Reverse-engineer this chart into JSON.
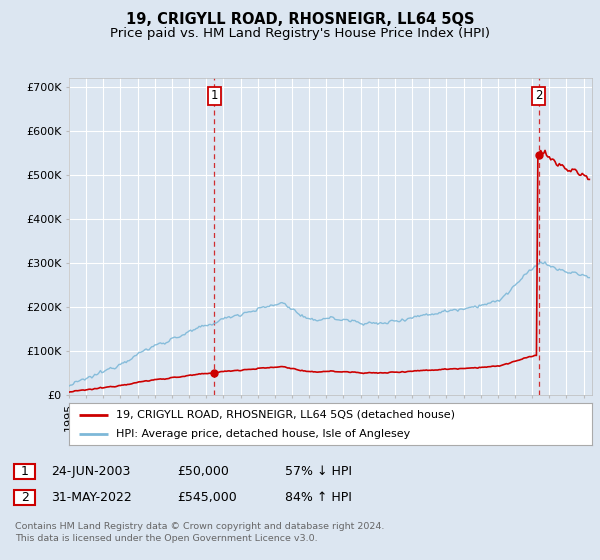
{
  "title": "19, CRIGYLL ROAD, RHOSNEIGR, LL64 5QS",
  "subtitle": "Price paid vs. HM Land Registry's House Price Index (HPI)",
  "background_color": "#dce6f1",
  "plot_bg_color": "#dce6f1",
  "grid_color": "#ffffff",
  "hpi_color": "#7db8d8",
  "price_color": "#cc0000",
  "ylim": [
    0,
    720000
  ],
  "yticks": [
    0,
    100000,
    200000,
    300000,
    400000,
    500000,
    600000,
    700000
  ],
  "ytick_labels": [
    "£0",
    "£100K",
    "£200K",
    "£300K",
    "£400K",
    "£500K",
    "£600K",
    "£700K"
  ],
  "xlim_start": 1995.0,
  "xlim_end": 2025.5,
  "transaction1_date": 2003.47,
  "transaction1_price": 50000,
  "transaction1_label": "1",
  "transaction2_date": 2022.37,
  "transaction2_price": 545000,
  "transaction2_label": "2",
  "legend_line1": "19, CRIGYLL ROAD, RHOSNEIGR, LL64 5QS (detached house)",
  "legend_line2": "HPI: Average price, detached house, Isle of Anglesey",
  "table_row1": [
    "1",
    "24-JUN-2003",
    "£50,000",
    "57% ↓ HPI"
  ],
  "table_row2": [
    "2",
    "31-MAY-2022",
    "£545,000",
    "84% ↑ HPI"
  ],
  "footer": "Contains HM Land Registry data © Crown copyright and database right 2024.\nThis data is licensed under the Open Government Licence v3.0.",
  "title_fontsize": 10.5,
  "subtitle_fontsize": 9.5,
  "tick_fontsize": 8,
  "hpi_linewidth": 1.0,
  "price_linewidth": 1.2
}
